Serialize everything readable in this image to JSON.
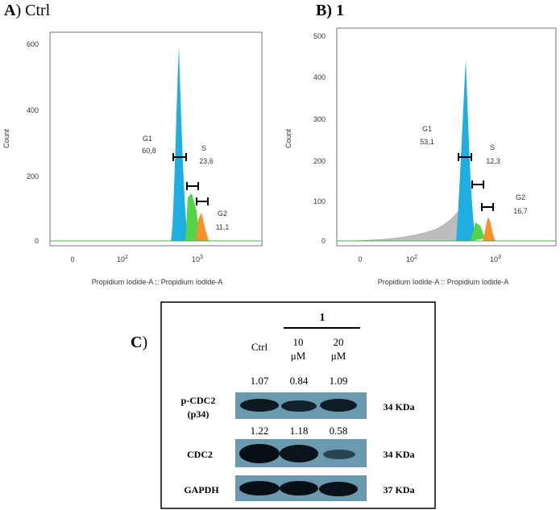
{
  "panels": [
    {
      "letter": "A",
      "title": "Ctrl",
      "y_axis_label": "Count",
      "x_axis_label": "Propidium Iodide-A :: Propidium Iodide-A",
      "yticks": [
        0,
        200,
        400,
        600
      ],
      "xticks": [
        {
          "text": "0"
        },
        {
          "base": "10",
          "exp": "2"
        },
        {
          "base": "10",
          "exp": "3"
        }
      ],
      "gates": [
        {
          "name": "G1",
          "value": "60,8"
        },
        {
          "name": "S",
          "value": "23,6"
        },
        {
          "name": "G2",
          "value": "11,1"
        }
      ]
    },
    {
      "letter": "B",
      "title": "1",
      "y_axis_label": "Count",
      "x_axis_label": "Propidium Iodide-A :: Propidium Iodide-A",
      "yticks": [
        0,
        100,
        200,
        300,
        400,
        500
      ],
      "xticks": [
        {
          "text": "0"
        },
        {
          "base": "10",
          "exp": "2"
        },
        {
          "base": "10",
          "exp": "3"
        }
      ],
      "gates": [
        {
          "name": "G1",
          "value": "53,1"
        },
        {
          "name": "S",
          "value": "12,3"
        },
        {
          "name": "G2",
          "value": "16,7"
        }
      ]
    }
  ],
  "blot": {
    "letter": "C",
    "treatment": "1",
    "lanes": [
      {
        "dose": "Ctrl"
      },
      {
        "dose": "10",
        "unit": "μM"
      },
      {
        "dose": "20",
        "unit": "μM"
      }
    ],
    "rows": [
      {
        "label": [
          "p-CDC2",
          "(p34)"
        ],
        "values": [
          1.07,
          0.84,
          1.09
        ],
        "size": "34 KDa"
      },
      {
        "label": [
          "CDC2"
        ],
        "values": [
          1.22,
          1.18,
          0.58
        ],
        "size": "34 KDa"
      },
      {
        "label": [
          "GAPDH"
        ],
        "size": "37 KDa"
      }
    ]
  }
}
